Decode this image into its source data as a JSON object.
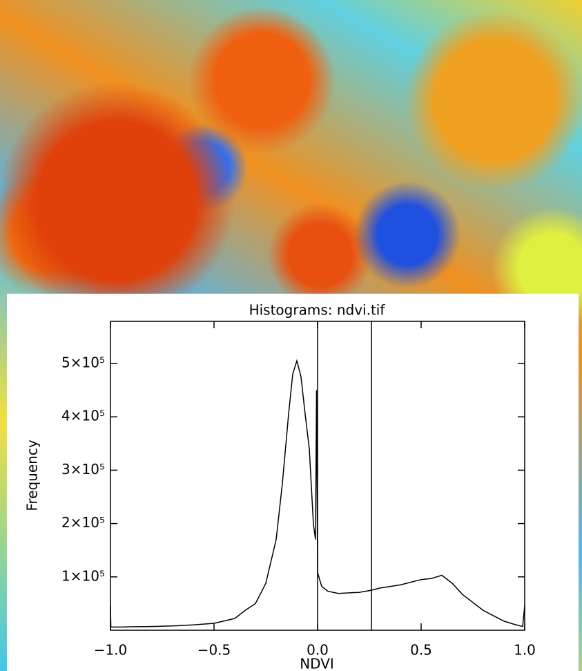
{
  "chart_data": {
    "type": "line",
    "title": "Histograms: ndvi.tif",
    "x_label": "NDVI",
    "y_label": "Frequency",
    "x": [
      -1.0,
      -0.998,
      -0.95,
      -0.9,
      -0.8,
      -0.7,
      -0.6,
      -0.5,
      -0.4,
      -0.35,
      -0.3,
      -0.25,
      -0.2,
      -0.17,
      -0.14,
      -0.12,
      -0.1,
      -0.08,
      -0.06,
      -0.04,
      -0.02,
      -0.01,
      -0.005,
      0.0,
      0.02,
      0.05,
      0.1,
      0.2,
      0.26,
      0.3,
      0.4,
      0.5,
      0.55,
      0.6,
      0.65,
      0.7,
      0.8,
      0.9,
      0.95,
      0.99,
      1.0
    ],
    "values": [
      46000,
      6000,
      6000,
      6500,
      7000,
      8000,
      10000,
      13000,
      22000,
      37000,
      50000,
      88000,
      170000,
      275000,
      405000,
      480000,
      505000,
      475000,
      405000,
      340000,
      198000,
      170000,
      450000,
      108000,
      82000,
      73000,
      69000,
      71000,
      75000,
      79000,
      85000,
      95000,
      97000,
      103000,
      88000,
      67000,
      37000,
      17000,
      11000,
      7000,
      46000
    ],
    "color": "#000000",
    "vlines": [
      0.0,
      0.26
    ],
    "xlim": [
      -1.0,
      1.0
    ],
    "ylim": [
      0,
      579000
    ],
    "xticks": [
      {
        "value": -1.0,
        "label": "−1.0"
      },
      {
        "value": -0.5,
        "label": "−0.5"
      },
      {
        "value": 0.0,
        "label": "0.0"
      },
      0.5,
      {
        "value": 1.0,
        "label": "1.0"
      }
    ],
    "yticks": [
      {
        "value": 100000,
        "label": "1×10⁵"
      },
      {
        "value": 200000,
        "label": "2×10⁵"
      },
      {
        "value": 300000,
        "label": "3×10⁵"
      },
      {
        "value": 400000,
        "label": "4×10⁵"
      },
      {
        "value": 500000,
        "label": "5×10⁵"
      }
    ],
    "grid": false
  }
}
